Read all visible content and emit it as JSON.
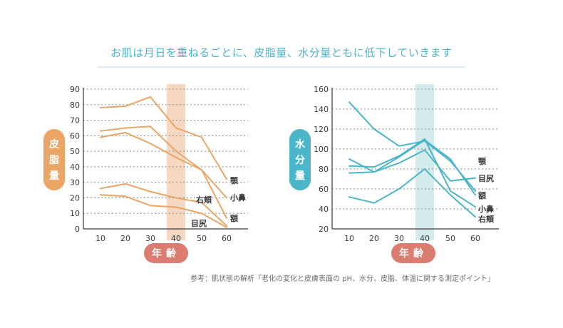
{
  "title": "お肌は月日を重ねるごとに、皮脂量、水分量ともに低下していきます",
  "source": "参考：肌状態の解析「老化の変化と皮膚表面の pH、水分、皮脂、体温に関する測定ポイント」",
  "colors": {
    "title": "#4bb6c9",
    "sebum_line": "#eba665",
    "sebum_badge": "#eba665",
    "sebum_band": "#f5d7c2",
    "water_line": "#4bb6c9",
    "water_badge": "#4bb6c9",
    "water_band": "#d4ebec",
    "age_pill": "#dc7c70"
  },
  "chart_data": [
    {
      "type": "line",
      "ylabel": "皮脂量",
      "xlabel": "年齢",
      "x": [
        10,
        20,
        30,
        40,
        50,
        60
      ],
      "ylim": [
        0,
        90
      ],
      "yticks": [
        0,
        10,
        20,
        30,
        40,
        50,
        60,
        70,
        80,
        90
      ],
      "grid": true,
      "highlight_x": 40,
      "series": [
        {
          "name": "顎",
          "values": [
            78,
            79,
            85,
            65,
            59,
            32
          ]
        },
        {
          "name": "小鼻",
          "values": [
            63,
            65,
            66,
            50,
            38,
            20
          ]
        },
        {
          "name": "額",
          "values": [
            59,
            62,
            55,
            46,
            38,
            7
          ]
        },
        {
          "name": "右頬",
          "values": [
            26,
            29,
            24,
            20,
            17,
            2
          ]
        },
        {
          "name": "目尻",
          "values": [
            22,
            21,
            15,
            14,
            10,
            1
          ]
        }
      ]
    },
    {
      "type": "line",
      "ylabel": "水分量",
      "xlabel": "年齢",
      "x": [
        10,
        20,
        30,
        40,
        50,
        60
      ],
      "ylim": [
        20,
        160
      ],
      "yticks": [
        20,
        40,
        60,
        80,
        100,
        120,
        140,
        160
      ],
      "grid": true,
      "highlight_x": 40,
      "series": [
        {
          "name": "顎",
          "values": [
            147,
            120,
            103,
            108,
            88,
            58
          ]
        },
        {
          "name": "目尻",
          "values": [
            90,
            77,
            86,
            99,
            68,
            71
          ]
        },
        {
          "name": "額",
          "values": [
            76,
            77,
            92,
            109,
            90,
            54
          ]
        },
        {
          "name": "小鼻",
          "values": [
            83,
            82,
            93,
            110,
            58,
            42
          ]
        },
        {
          "name": "右頬",
          "values": [
            52,
            46,
            60,
            80,
            54,
            32
          ]
        }
      ]
    }
  ]
}
